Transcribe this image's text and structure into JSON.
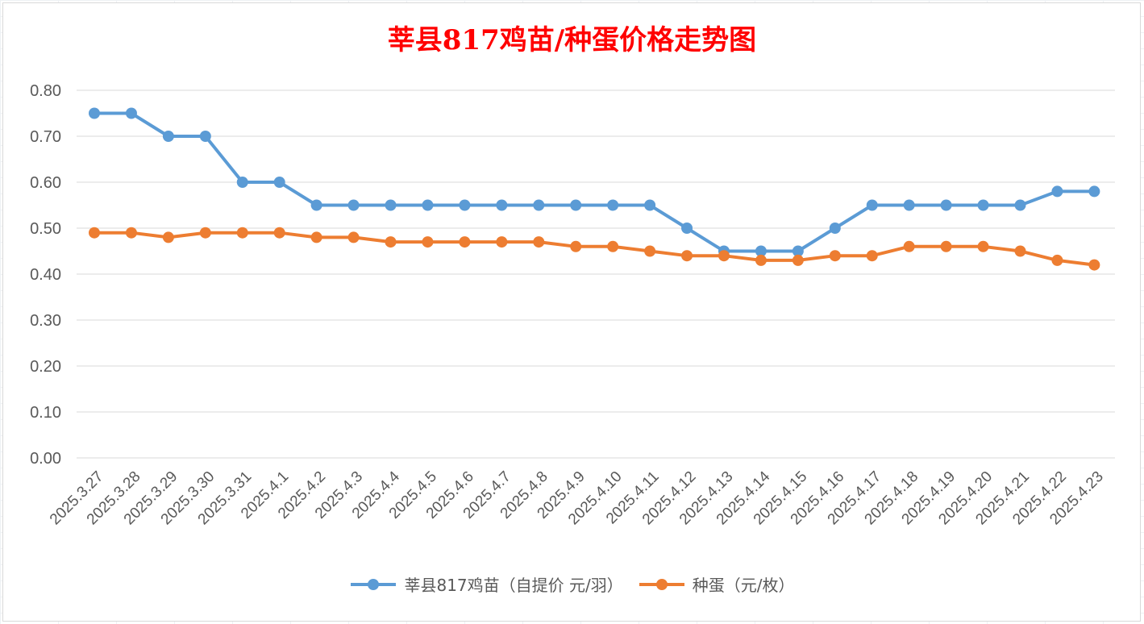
{
  "chart_data": {
    "type": "line",
    "title": "莘县817鸡苗/种蛋价格走势图",
    "categories": [
      "2025.3.27",
      "2025.3.28",
      "2025.3.29",
      "2025.3.30",
      "2025.3.31",
      "2025.4.1",
      "2025.4.2",
      "2025.4.3",
      "2025.4.4",
      "2025.4.5",
      "2025.4.6",
      "2025.4.7",
      "2025.4.8",
      "2025.4.9",
      "2025.4.10",
      "2025.4.11",
      "2025.4.12",
      "2025.4.13",
      "2025.4.14",
      "2025.4.15",
      "2025.4.16",
      "2025.4.17",
      "2025.4.18",
      "2025.4.19",
      "2025.4.20",
      "2025.4.21",
      "2025.4.22",
      "2025.4.23"
    ],
    "series": [
      {
        "name": "莘县817鸡苗（自提价 元/羽）",
        "color": "#5b9bd5",
        "values": [
          0.75,
          0.75,
          0.7,
          0.7,
          0.6,
          0.6,
          0.55,
          0.55,
          0.55,
          0.55,
          0.55,
          0.55,
          0.55,
          0.55,
          0.55,
          0.55,
          0.5,
          0.45,
          0.45,
          0.45,
          0.5,
          0.55,
          0.55,
          0.55,
          0.55,
          0.55,
          0.58,
          0.58
        ]
      },
      {
        "name": "种蛋（元/枚）",
        "color": "#ed7d31",
        "values": [
          0.49,
          0.49,
          0.48,
          0.49,
          0.49,
          0.49,
          0.48,
          0.48,
          0.47,
          0.47,
          0.47,
          0.47,
          0.47,
          0.46,
          0.46,
          0.45,
          0.44,
          0.44,
          0.43,
          0.43,
          0.44,
          0.44,
          0.46,
          0.46,
          0.46,
          0.45,
          0.43,
          0.42
        ]
      }
    ],
    "ylim": [
      0,
      0.8
    ],
    "yticks": [
      "0.00",
      "0.10",
      "0.20",
      "0.30",
      "0.40",
      "0.50",
      "0.60",
      "0.70",
      "0.80"
    ],
    "grid": true,
    "legend_position": "bottom"
  }
}
